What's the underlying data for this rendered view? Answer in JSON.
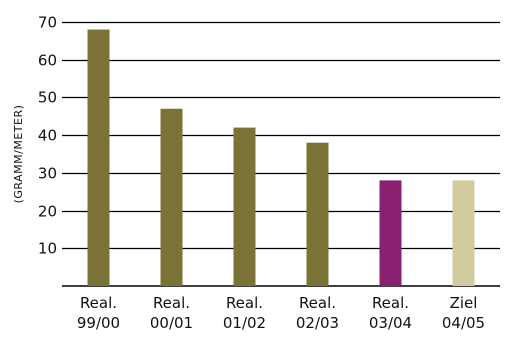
{
  "chart_data": {
    "type": "bar",
    "ylabel": "(GRAMM/METER)",
    "ylim": [
      0,
      70
    ],
    "yticks": [
      10,
      20,
      30,
      40,
      50,
      60,
      70
    ],
    "grid": true,
    "categories": [
      [
        "Real.",
        "99/00"
      ],
      [
        "Real.",
        "00/01"
      ],
      [
        "Real.",
        "01/02"
      ],
      [
        "Real.",
        "02/03"
      ],
      [
        "Real.",
        "03/04"
      ],
      [
        "Ziel",
        "04/05"
      ]
    ],
    "values": [
      68,
      47,
      42,
      38,
      28,
      28
    ],
    "bar_colors": [
      "#7b7336",
      "#7b7336",
      "#7b7336",
      "#7b7336",
      "#8b1f72",
      "#d3cb9d"
    ],
    "gridline_color": "#000000"
  }
}
